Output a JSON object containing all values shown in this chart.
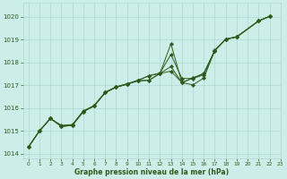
{
  "title": "Graphe pression niveau de la mer (hPa)",
  "bg_color": "#cceee8",
  "line_color": "#2d5a1b",
  "grid_color": "#aad8d0",
  "xlim": [
    -0.5,
    23
  ],
  "ylim": [
    1013.8,
    1020.6
  ],
  "yticks": [
    1014,
    1015,
    1016,
    1017,
    1018,
    1019,
    1020
  ],
  "xticks": [
    0,
    1,
    2,
    3,
    4,
    5,
    6,
    7,
    8,
    9,
    10,
    11,
    12,
    13,
    14,
    15,
    16,
    17,
    18,
    19,
    20,
    21,
    22,
    23
  ],
  "figsize": [
    3.2,
    2.0
  ],
  "dpi": 100,
  "series": [
    {
      "x": [
        0,
        1,
        2,
        3,
        4,
        5,
        6,
        7,
        8,
        9,
        10,
        11,
        12,
        13,
        14,
        15,
        16,
        17,
        18,
        19,
        21,
        22
      ],
      "y": [
        1014.3,
        1015.0,
        1015.55,
        1015.2,
        1015.25,
        1015.85,
        1016.1,
        1016.68,
        1016.92,
        1017.05,
        1017.2,
        1017.22,
        1017.52,
        1017.82,
        1017.12,
        1017.32,
        1017.52,
        1018.52,
        1019.02,
        1019.12,
        1019.82,
        1020.02
      ]
    },
    {
      "x": [
        0,
        1,
        2,
        3,
        4,
        5,
        6,
        7,
        8,
        9,
        10,
        11,
        12,
        13,
        14,
        15,
        16,
        17,
        18,
        19,
        21,
        22
      ],
      "y": [
        1014.3,
        1015.0,
        1015.55,
        1015.2,
        1015.25,
        1015.85,
        1016.1,
        1016.68,
        1016.92,
        1017.05,
        1017.2,
        1017.22,
        1017.52,
        1018.82,
        1017.12,
        1017.02,
        1017.32,
        1018.52,
        1019.02,
        1019.12,
        1019.82,
        1020.02
      ]
    },
    {
      "x": [
        0,
        1,
        2,
        3,
        4,
        5,
        6,
        7,
        8,
        9,
        10,
        11,
        12,
        13,
        14,
        15,
        16,
        17,
        18,
        19,
        21,
        22
      ],
      "y": [
        1014.3,
        1015.0,
        1015.55,
        1015.2,
        1015.25,
        1015.85,
        1016.1,
        1016.68,
        1016.92,
        1017.05,
        1017.22,
        1017.42,
        1017.52,
        1017.62,
        1017.12,
        1017.32,
        1017.52,
        1018.52,
        1019.02,
        1019.12,
        1019.82,
        1020.02
      ]
    },
    {
      "x": [
        0,
        1,
        2,
        3,
        4,
        5,
        6,
        7,
        8,
        9,
        10,
        11,
        12,
        13,
        14,
        15,
        16,
        17,
        18,
        19,
        21,
        22
      ],
      "y": [
        1014.3,
        1015.0,
        1015.55,
        1015.25,
        1015.28,
        1015.88,
        1016.12,
        1016.7,
        1016.94,
        1017.07,
        1017.22,
        1017.42,
        1017.54,
        1018.35,
        1017.3,
        1017.3,
        1017.46,
        1018.54,
        1019.02,
        1019.12,
        1019.82,
        1020.02
      ]
    }
  ]
}
